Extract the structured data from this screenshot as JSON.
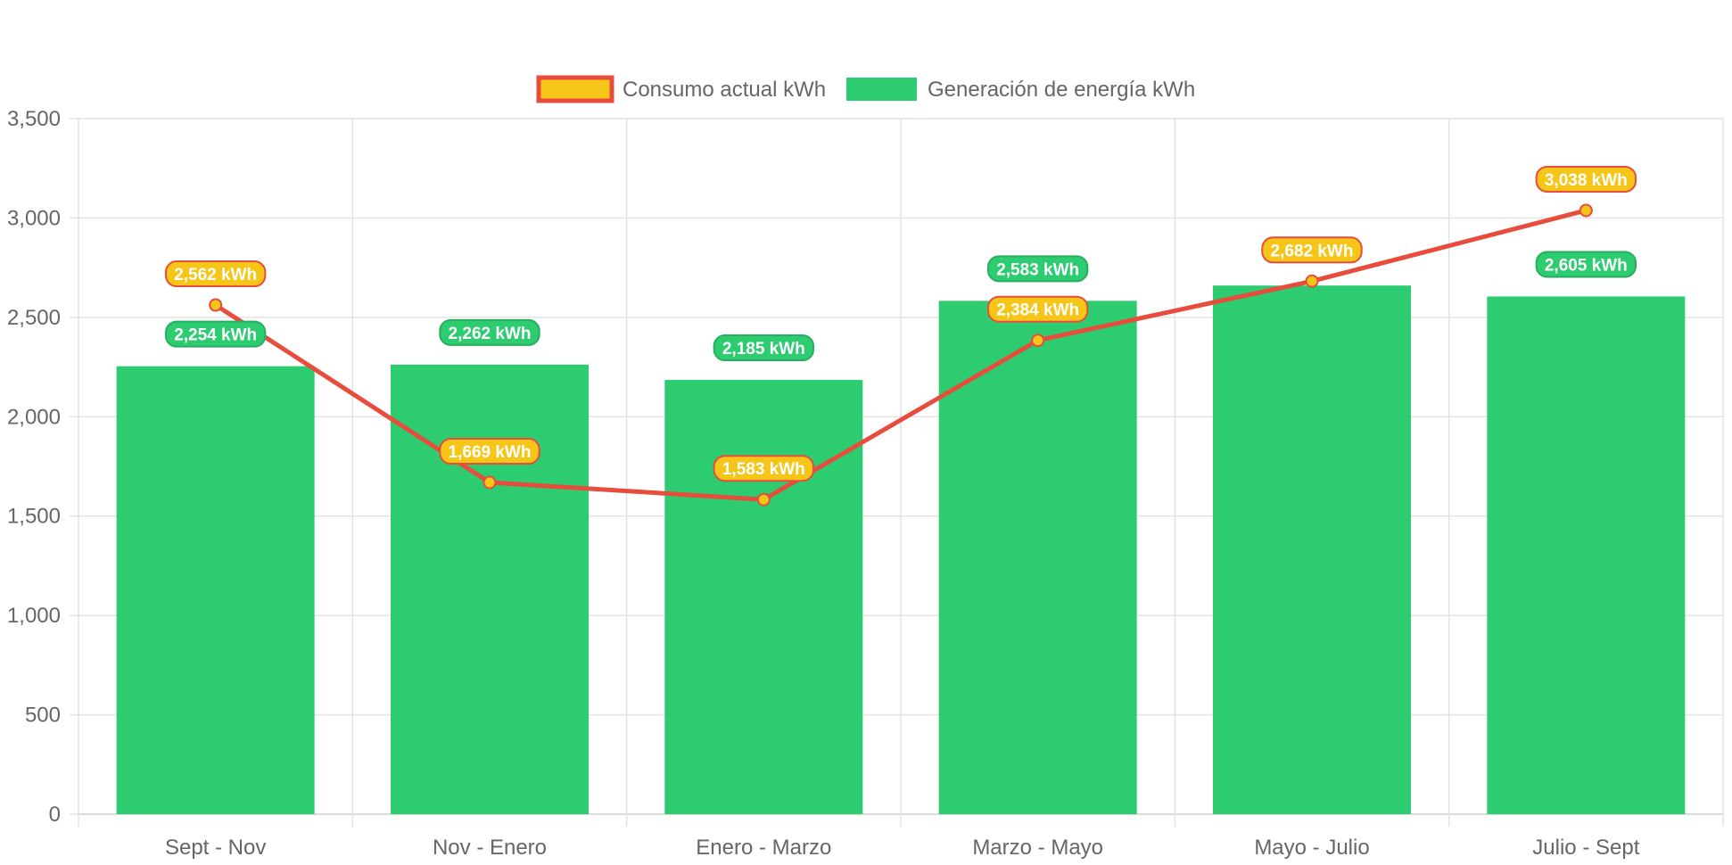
{
  "chart_data": {
    "type": "bar",
    "categories": [
      "Sept - Nov",
      "Nov - Enero",
      "Enero - Marzo",
      "Marzo - Mayo",
      "Mayo - Julio",
      "Julio - Sept"
    ],
    "series": [
      {
        "name": "Consumo actual kWh",
        "type": "line",
        "values": [
          2562,
          1669,
          1583,
          2384,
          2682,
          3038
        ],
        "labels": [
          "2,562 kWh",
          "1,669 kWh",
          "1,583 kWh",
          "2,384 kWh",
          "2,682 kWh",
          "3,038 kWh"
        ],
        "line_color": "#e74c3c",
        "fill_color": "#f5c518"
      },
      {
        "name": "Generación de energía kWh",
        "type": "bar",
        "values": [
          2254,
          2262,
          2185,
          2583,
          2660,
          2605
        ],
        "labels": [
          "2,254 kWh",
          "2,262 kWh",
          "2,185 kWh",
          "2,583 kWh",
          "",
          "2,605 kWh"
        ],
        "fill_color": "#2ecc71",
        "border_color": "#27ae60"
      }
    ],
    "ylim": [
      0,
      3500
    ],
    "yticks": [
      0,
      500,
      1000,
      1500,
      2000,
      2500,
      3000,
      3500
    ],
    "ytick_labels": [
      "0",
      "500",
      "1,000",
      "1,500",
      "2,000",
      "2,500",
      "3,000",
      "3,500"
    ],
    "grid": true,
    "legend_position": "top-center",
    "title": "",
    "xlabel": "",
    "ylabel": ""
  }
}
